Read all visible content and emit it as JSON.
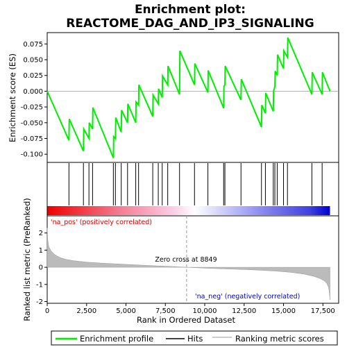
{
  "chart_data": {
    "type": "line",
    "title_line1": "Enrichment plot:",
    "title_line2": "REACTOME_DAG_AND_IP3_SIGNALING",
    "top_panel": {
      "ylabel": "Enrichment score (ES)",
      "ylim": [
        -0.113,
        0.093
      ],
      "yticks": [
        0.075,
        0.05,
        0.025,
        0.0,
        -0.025,
        -0.05,
        -0.075,
        -0.1
      ],
      "ytick_labels": [
        "0.075",
        "0.050",
        "0.025",
        "0.000",
        "-0.025",
        "-0.050",
        "-0.075",
        "-0.100"
      ],
      "series": [
        {
          "name": "Enrichment profile",
          "color": "#00ee00",
          "x": [
            0,
            1380,
            1400,
            2300,
            2320,
            2650,
            2670,
            2880,
            2900,
            4200,
            4220,
            4330,
            4350,
            4700,
            4720,
            5100,
            5120,
            5620,
            5640,
            5800,
            5820,
            6700,
            6720,
            7050,
            7070,
            7300,
            7320,
            7650,
            7670,
            8400,
            8420,
            9350,
            9370,
            10200,
            10220,
            11200,
            11220,
            11280,
            11300,
            12300,
            12320,
            13600,
            13620,
            13850,
            13870,
            14350,
            14370,
            14450,
            14470,
            14600,
            14620,
            15000,
            15020,
            15250,
            15270,
            16800,
            16820,
            17450,
            17470,
            17950
          ],
          "y": [
            0.0,
            -0.078,
            -0.044,
            -0.095,
            -0.06,
            -0.075,
            -0.05,
            -0.06,
            -0.026,
            -0.106,
            -0.072,
            -0.075,
            -0.042,
            -0.065,
            -0.03,
            -0.05,
            -0.02,
            -0.05,
            -0.017,
            -0.022,
            0.01,
            -0.04,
            -0.006,
            -0.02,
            0.004,
            -0.01,
            0.024,
            0.01,
            0.04,
            -0.005,
            0.064,
            0.01,
            0.044,
            -0.002,
            0.033,
            -0.027,
            0.008,
            0.01,
            0.04,
            -0.014,
            0.019,
            -0.057,
            -0.022,
            -0.035,
            -0.003,
            -0.032,
            0.0,
            0.008,
            0.032,
            0.025,
            0.058,
            0.036,
            0.064,
            0.054,
            0.085,
            -0.005,
            0.03,
            -0.005,
            0.03,
            0.0
          ]
        }
      ]
    },
    "hits_panel": {
      "name": "Hits",
      "hit_positions": [
        1380,
        2300,
        2650,
        2880,
        4200,
        4330,
        4700,
        5100,
        5620,
        5800,
        6700,
        7050,
        7300,
        7650,
        8400,
        9350,
        10200,
        11200,
        11280,
        12300,
        13600,
        13850,
        14350,
        14450,
        14600,
        15000,
        15250,
        16800,
        17450
      ]
    },
    "ranked_panel": {
      "name": "Ranking metric scores",
      "ylabel": "Ranked list metric (PreRanked)",
      "xlabel": "Rank in Ordered Dataset",
      "ylim": [
        -2.1,
        3.0
      ],
      "yticks": [
        2,
        1,
        0,
        -1,
        -2
      ],
      "xticks": [
        0,
        2500,
        5000,
        7500,
        10000,
        12500,
        15000,
        17500
      ],
      "xtick_labels": [
        "0",
        "2,500",
        "5,000",
        "7,500",
        "10,000",
        "12,500",
        "15,000",
        "17,500"
      ],
      "xlim": [
        0,
        18500
      ],
      "curve_x": [
        0,
        30,
        100,
        250,
        500,
        800,
        1200,
        1700,
        2500,
        3500,
        5000,
        6500,
        8000,
        8849,
        10000,
        11500,
        13000,
        14500,
        15500,
        16300,
        16900,
        17300,
        17600,
        17750,
        17850,
        17900,
        17950
      ],
      "curve_y": [
        2.3,
        1.65,
        1.2,
        0.95,
        0.72,
        0.57,
        0.46,
        0.38,
        0.3,
        0.24,
        0.17,
        0.1,
        0.04,
        0.0,
        -0.05,
        -0.1,
        -0.15,
        -0.22,
        -0.3,
        -0.4,
        -0.52,
        -0.65,
        -0.8,
        -0.95,
        -1.15,
        -1.4,
        -1.9
      ],
      "zero_cross": 8849,
      "zero_cross_label": "Zero cross at 8849",
      "pos_label": "'na_pos' (positively correlated)",
      "neg_label": "'na_neg' (negatively correlated)",
      "max_rank": 17950
    },
    "legend": {
      "placement": "bottom",
      "items": [
        {
          "label": "Enrichment profile",
          "color": "#00ee00"
        },
        {
          "label": "Hits",
          "color": "#000000"
        },
        {
          "label": "Ranking metric scores",
          "color": "#bbbbbb"
        }
      ]
    },
    "colors": {
      "profile": "#00ee00",
      "hits": "#000000",
      "metric_fill": "#bbbbbb",
      "zero_line": "#999999",
      "bar_pos": "#ee0000",
      "bar_mid": "#ffffff",
      "bar_neg": "#0000ee"
    }
  }
}
